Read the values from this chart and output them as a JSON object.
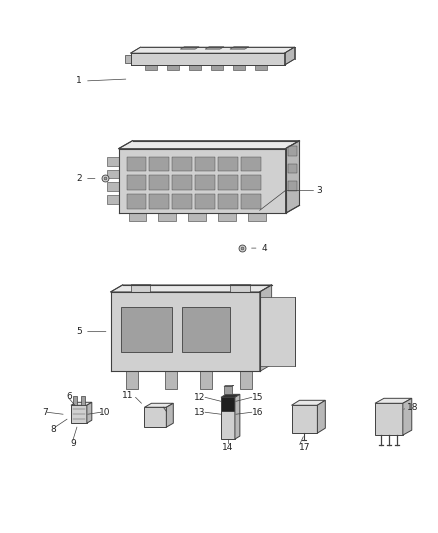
{
  "bg_color": "#ffffff",
  "fig_width": 4.38,
  "fig_height": 5.33,
  "dpi": 100,
  "line_color": "#404040",
  "fill_light": "#e8e8e8",
  "fill_mid": "#d0d0d0",
  "fill_dark": "#b8b8b8",
  "fill_darker": "#a0a0a0",
  "text_color": "#222222",
  "font_size": 6.5
}
